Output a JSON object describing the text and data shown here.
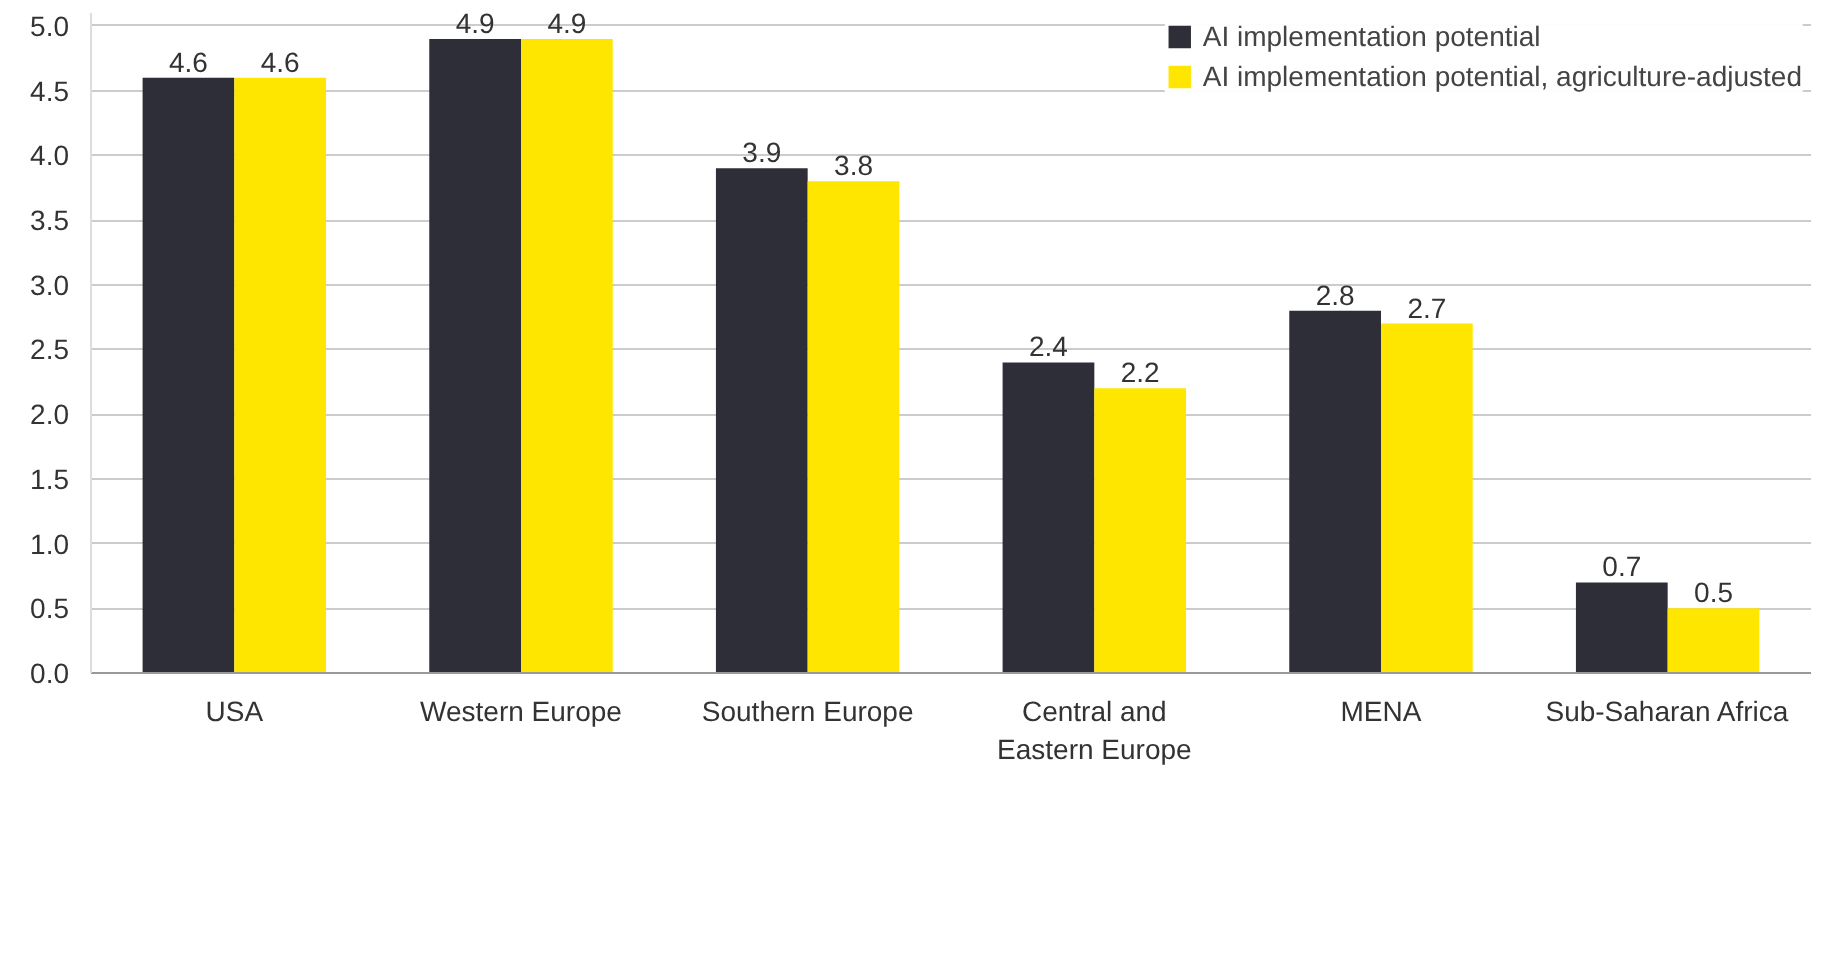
{
  "chart_data": {
    "type": "bar",
    "categories": [
      "USA",
      "Western Europe",
      "Southern Europe",
      "Central and Eastern Europe",
      "MENA",
      "Sub-Saharan Africa"
    ],
    "series": [
      {
        "name": "AI implementation potential",
        "color": "#2e2e38",
        "values": [
          4.6,
          4.9,
          3.9,
          2.4,
          2.8,
          0.7
        ]
      },
      {
        "name": "AI implementation potential, agriculture-adjusted",
        "color": "#ffe600",
        "values": [
          4.6,
          4.9,
          3.8,
          2.2,
          2.7,
          0.5
        ]
      }
    ],
    "ylim": [
      0,
      5.1
    ],
    "yticks": [
      {
        "value": 0,
        "label": "0.0"
      },
      0.5,
      {
        "value": 1,
        "label": "1.0"
      },
      1.5,
      {
        "value": 2,
        "label": "2.0"
      },
      2.5,
      {
        "value": 3,
        "label": "3.0"
      },
      3.5,
      {
        "value": 4,
        "label": "4.0"
      },
      4.5,
      {
        "value": 5,
        "label": "5.0"
      }
    ],
    "grid": "y",
    "legend": "top right",
    "data_labels": true
  }
}
